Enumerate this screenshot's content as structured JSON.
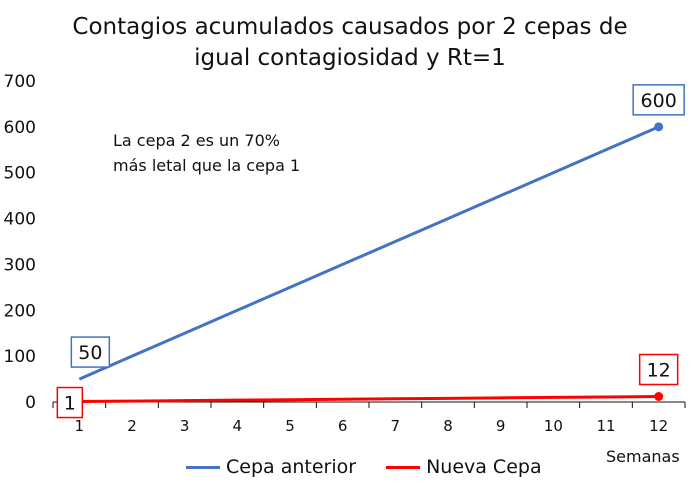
{
  "title_line1": "Contagios acumulados causados por 2 cepas de",
  "title_line2": "igual contagiosidad y Rt=1",
  "annotation_line1": "La cepa 2 es un 70%",
  "annotation_line2": "más letal  que la cepa 1",
  "colors": {
    "series1": "#4472C4",
    "series2": "#FF0000",
    "axis": "#111111"
  },
  "chart_data": {
    "type": "line",
    "title": "Contagios acumulados causados por 2 cepas de igual contagiosidad y Rt=1",
    "xlabel": "Semanas",
    "ylabel": "",
    "x": [
      1,
      2,
      3,
      4,
      5,
      6,
      7,
      8,
      9,
      10,
      11,
      12
    ],
    "ylim": [
      0,
      700
    ],
    "yticks": [
      0,
      100,
      200,
      300,
      400,
      500,
      600,
      700
    ],
    "grid": false,
    "legend": "bottom",
    "series": [
      {
        "name": "Cepa anterior",
        "values": [
          50,
          100,
          150,
          200,
          250,
          300,
          350,
          400,
          450,
          500,
          550,
          600
        ]
      },
      {
        "name": "Nueva Cepa",
        "values": [
          1,
          2,
          3,
          4,
          5,
          6,
          7,
          8,
          9,
          10,
          11,
          12
        ]
      }
    ],
    "data_labels": [
      {
        "series": 0,
        "index": 0,
        "text": "50"
      },
      {
        "series": 0,
        "index": 11,
        "text": "600"
      },
      {
        "series": 1,
        "index": 0,
        "text": "1"
      },
      {
        "series": 1,
        "index": 11,
        "text": "12"
      }
    ]
  }
}
